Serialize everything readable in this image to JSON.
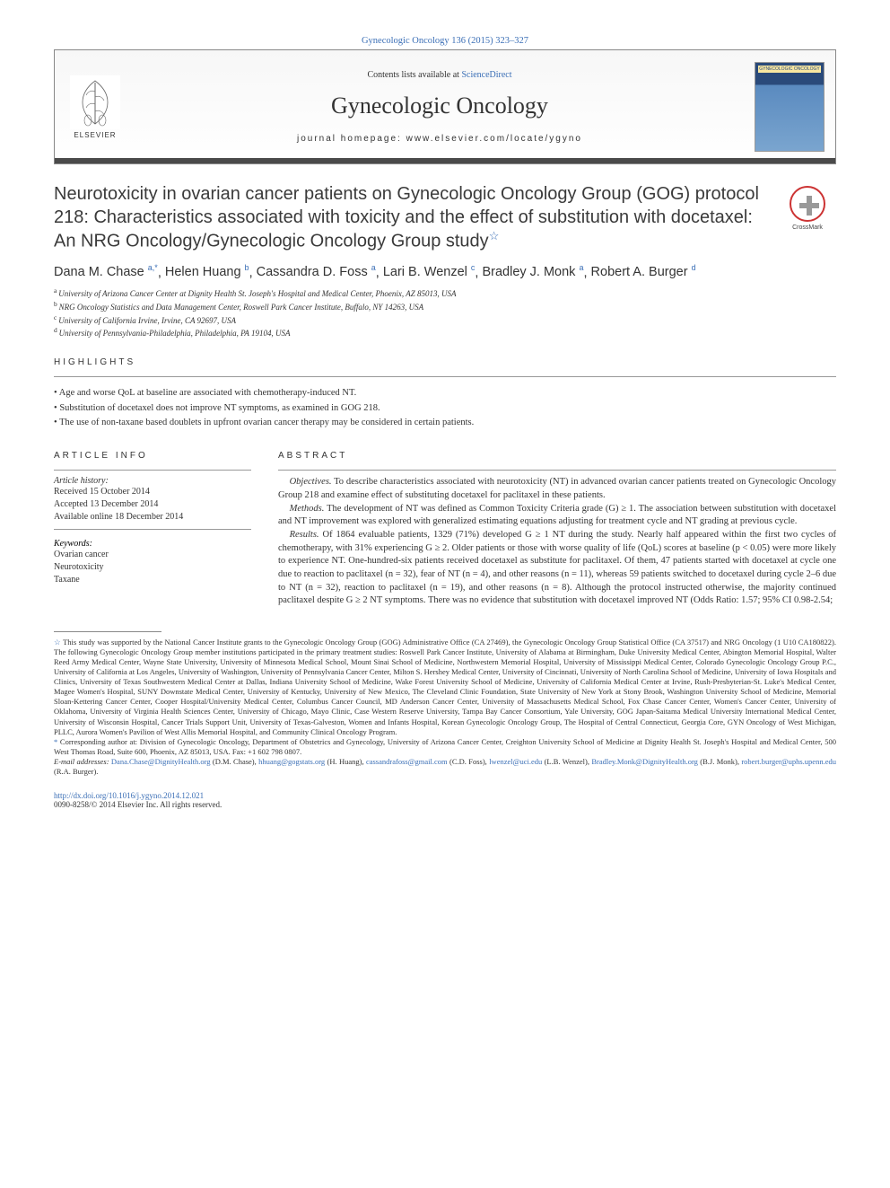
{
  "citation": "Gynecologic Oncology 136 (2015) 323–327",
  "header": {
    "contents_prefix": "Contents lists available at ",
    "contents_link": "ScienceDirect",
    "journal": "Gynecologic Oncology",
    "homepage": "journal homepage: www.elsevier.com/locate/ygyno",
    "publisher": "ELSEVIER",
    "cover_label": "GYNECOLOGIC ONCOLOGY"
  },
  "crossmark": "CrossMark",
  "title": "Neurotoxicity in ovarian cancer patients on Gynecologic Oncology Group (GOG) protocol 218: Characteristics associated with toxicity and the effect of substitution with docetaxel: An NRG Oncology/Gynecologic Oncology Group study",
  "star": "☆",
  "authors": [
    {
      "name": "Dana M. Chase",
      "sup": "a,*"
    },
    {
      "name": "Helen Huang",
      "sup": "b"
    },
    {
      "name": "Cassandra D. Foss",
      "sup": "a"
    },
    {
      "name": "Lari B. Wenzel",
      "sup": "c"
    },
    {
      "name": "Bradley J. Monk",
      "sup": "a"
    },
    {
      "name": "Robert A. Burger",
      "sup": "d"
    }
  ],
  "affiliations": [
    {
      "sup": "a",
      "text": "University of Arizona Cancer Center at Dignity Health St. Joseph's Hospital and Medical Center, Phoenix, AZ 85013, USA"
    },
    {
      "sup": "b",
      "text": "NRG Oncology Statistics and Data Management Center, Roswell Park Cancer Institute, Buffalo, NY 14263, USA"
    },
    {
      "sup": "c",
      "text": "University of California Irvine, Irvine, CA 92697, USA"
    },
    {
      "sup": "d",
      "text": "University of Pennsylvania-Philadelphia, Philadelphia, PA 19104, USA"
    }
  ],
  "highlights_head": "HIGHLIGHTS",
  "highlights": [
    "Age and worse QoL at baseline are associated with chemotherapy-induced NT.",
    "Substitution of docetaxel does not improve NT symptoms, as examined in GOG 218.",
    "The use of non-taxane based doublets in upfront ovarian cancer therapy may be considered in certain patients."
  ],
  "info_head": "ARTICLE INFO",
  "abstract_head": "ABSTRACT",
  "history_label": "Article history:",
  "history": [
    "Received 15 October 2014",
    "Accepted 13 December 2014",
    "Available online 18 December 2014"
  ],
  "keywords_label": "Keywords:",
  "keywords": [
    "Ovarian cancer",
    "Neurotoxicity",
    "Taxane"
  ],
  "abstract": {
    "objectives_label": "Objectives.",
    "objectives": " To describe characteristics associated with neurotoxicity (NT) in advanced ovarian cancer patients treated on Gynecologic Oncology Group 218 and examine effect of substituting docetaxel for paclitaxel in these patients.",
    "methods_label": "Methods.",
    "methods": " The development of NT was defined as Common Toxicity Criteria grade (G) ≥ 1. The association between substitution with docetaxel and NT improvement was explored with generalized estimating equations adjusting for treatment cycle and NT grading at previous cycle.",
    "results_label": "Results.",
    "results": " Of 1864 evaluable patients, 1329 (71%) developed G ≥ 1 NT during the study. Nearly half appeared within the first two cycles of chemotherapy, with 31% experiencing G ≥ 2. Older patients or those with worse quality of life (QoL) scores at baseline (p < 0.05) were more likely to experience NT. One-hundred-six patients received docetaxel as substitute for paclitaxel. Of them, 47 patients started with docetaxel at cycle one due to reaction to paclitaxel (n = 32), fear of NT (n = 4), and other reasons (n = 11), whereas 59 patients switched to docetaxel during cycle 2–6 due to NT (n = 32), reaction to paclitaxel (n = 19), and other reasons (n = 8). Although the protocol instructed otherwise, the majority continued paclitaxel despite G ≥ 2 NT symptoms. There was no evidence that substitution with docetaxel improved NT (Odds Ratio: 1.57; 95% CI 0.98-2.54;"
  },
  "footnotes": {
    "funding_sym": "☆",
    "funding": " This study was supported by the National Cancer Institute grants to the Gynecologic Oncology Group (GOG) Administrative Office (CA 27469), the Gynecologic Oncology Group Statistical Office (CA 37517) and NRG Oncology (1 U10 CA180822). The following Gynecologic Oncology Group member institutions participated in the primary treatment studies: Roswell Park Cancer Institute, University of Alabama at Birmingham, Duke University Medical Center, Abington Memorial Hospital, Walter Reed Army Medical Center, Wayne State University, University of Minnesota Medical School, Mount Sinai School of Medicine, Northwestern Memorial Hospital, University of Mississippi Medical Center, Colorado Gynecologic Oncology Group P.C., University of California at Los Angeles, University of Washington, University of Pennsylvania Cancer Center, Milton S. Hershey Medical Center, University of Cincinnati, University of North Carolina School of Medicine, University of Iowa Hospitals and Clinics, University of Texas Southwestern Medical Center at Dallas, Indiana University School of Medicine, Wake Forest University School of Medicine, University of California Medical Center at Irvine, Rush-Presbyterian-St. Luke's Medical Center, Magee Women's Hospital, SUNY Downstate Medical Center, University of Kentucky, University of New Mexico, The Cleveland Clinic Foundation, State University of New York at Stony Brook, Washington University School of Medicine, Memorial Sloan-Kettering Cancer Center, Cooper Hospital/University Medical Center, Columbus Cancer Council, MD Anderson Cancer Center, University of Massachusetts Medical School, Fox Chase Cancer Center, Women's Cancer Center, University of Oklahoma, University of Virginia Health Sciences Center, University of Chicago, Mayo Clinic, Case Western Reserve University, Tampa Bay Cancer Consortium, Yale University, GOG Japan-Saitama Medical University International Medical Center, University of Wisconsin Hospital, Cancer Trials Support Unit, University of Texas-Galveston, Women and Infants Hospital, Korean Gynecologic Oncology Group, The Hospital of Central Connecticut, Georgia Core, GYN Oncology of West Michigan, PLLC, Aurora Women's Pavilion of West Allis Memorial Hospital, and Community Clinical Oncology Program.",
    "corr_sym": "*",
    "corr": " Corresponding author at: Division of Gynecologic Oncology, Department of Obstetrics and Gynecology, University of Arizona Cancer Center, Creighton University School of Medicine at Dignity Health St. Joseph's Hospital and Medical Center, 500 West Thomas Road, Suite 600, Phoenix, AZ 85013, USA. Fax: +1 602 798 0807.",
    "email_label": "E-mail addresses: ",
    "emails": [
      {
        "addr": "Dana.Chase@DignityHealth.org",
        "who": " (D.M. Chase), "
      },
      {
        "addr": "hhuang@gogstats.org",
        "who": " (H. Huang), "
      },
      {
        "addr": "cassandrafoss@gmail.com",
        "who": " (C.D. Foss), "
      },
      {
        "addr": "lwenzel@uci.edu",
        "who": " (L.B. Wenzel), "
      },
      {
        "addr": "Bradley.Monk@DignityHealth.org",
        "who": " (B.J. Monk), "
      },
      {
        "addr": "robert.burger@uphs.upenn.edu",
        "who": " (R.A. Burger)."
      }
    ]
  },
  "doi": {
    "url": "http://dx.doi.org/10.1016/j.ygyno.2014.12.021",
    "copyright": "0090-8258/© 2014 Elsevier Inc. All rights reserved."
  },
  "colors": {
    "link": "#3b6fb6",
    "text": "#333333",
    "rule": "#999999"
  }
}
